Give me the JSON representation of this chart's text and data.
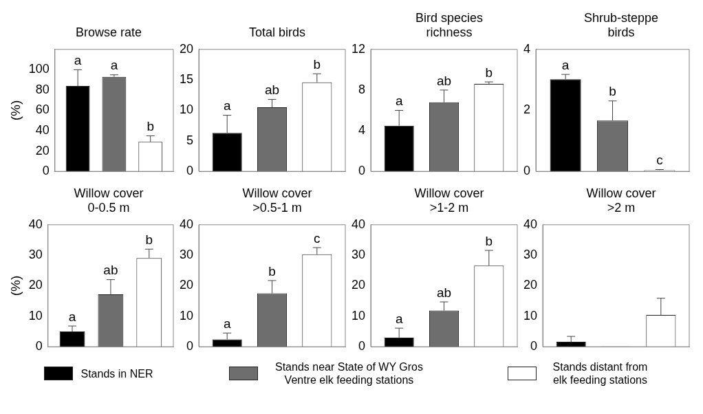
{
  "chart_data": [
    {
      "type": "bar",
      "title": "Browse rate",
      "ylabel": "(%)",
      "categories": [
        null
      ],
      "ylim": [
        0,
        120
      ],
      "yticks": [
        0,
        20,
        40,
        60,
        80,
        100
      ],
      "legend": "bottom",
      "series": [
        {
          "name": "Stands in NER",
          "color": "#000000",
          "values": [
            84
          ],
          "errors": [
            16
          ],
          "value_labels": [
            "a"
          ]
        },
        {
          "name": "Stands near State of WY Gros Ventre elk feeding stations",
          "color": "#6e6e6e",
          "values": [
            93
          ],
          "errors": [
            2
          ],
          "value_labels": [
            "a"
          ]
        },
        {
          "name": "Stands distant from elk feeding stations",
          "color": "#ffffff",
          "values": [
            29
          ],
          "errors": [
            6
          ],
          "value_labels": [
            "b"
          ]
        }
      ]
    },
    {
      "type": "bar",
      "title": "Total birds",
      "categories": [
        null
      ],
      "ylim": [
        0,
        20
      ],
      "yticks": [
        0,
        5,
        10,
        15,
        20
      ],
      "series": [
        {
          "color": "#000000",
          "values": [
            6.3
          ],
          "errors": [
            2.9
          ],
          "value_labels": [
            "a"
          ]
        },
        {
          "color": "#6e6e6e",
          "values": [
            10.5
          ],
          "errors": [
            1.3
          ],
          "value_labels": [
            "ab"
          ]
        },
        {
          "color": "#ffffff",
          "values": [
            14.6
          ],
          "errors": [
            1.4
          ],
          "value_labels": [
            "b"
          ]
        }
      ]
    },
    {
      "type": "bar",
      "title": "Bird species richness",
      "categories": [
        null
      ],
      "ylim": [
        0,
        12
      ],
      "yticks": [
        0,
        4,
        8,
        12
      ],
      "series": [
        {
          "color": "#000000",
          "values": [
            4.5
          ],
          "errors": [
            1.5
          ],
          "value_labels": [
            "a"
          ]
        },
        {
          "color": "#6e6e6e",
          "values": [
            6.8
          ],
          "errors": [
            1.2
          ],
          "value_labels": [
            "ab"
          ]
        },
        {
          "color": "#ffffff",
          "values": [
            8.6
          ],
          "errors": [
            0.2
          ],
          "value_labels": [
            "b"
          ]
        }
      ]
    },
    {
      "type": "bar",
      "title": "Shrub-steppe birds",
      "categories": [
        null
      ],
      "ylim": [
        0,
        4
      ],
      "yticks": [
        0,
        2,
        4
      ],
      "series": [
        {
          "color": "#000000",
          "values": [
            3.02
          ],
          "errors": [
            0.16
          ],
          "value_labels": [
            "a"
          ]
        },
        {
          "color": "#6e6e6e",
          "values": [
            1.67
          ],
          "errors": [
            0.64
          ],
          "value_labels": [
            "b"
          ]
        },
        {
          "color": "#ffffff",
          "values": [
            0.04
          ],
          "errors": [
            0.02
          ],
          "value_labels": [
            "c"
          ]
        }
      ]
    },
    {
      "type": "bar",
      "title": "Willow cover 0-0.5 m",
      "ylabel": "(%)",
      "categories": [
        null
      ],
      "ylim": [
        0,
        40
      ],
      "yticks": [
        0,
        10,
        20,
        30,
        40
      ],
      "series": [
        {
          "color": "#000000",
          "values": [
            5.0
          ],
          "errors": [
            1.8
          ],
          "value_labels": [
            "a"
          ]
        },
        {
          "color": "#6e6e6e",
          "values": [
            17.2
          ],
          "errors": [
            4.8
          ],
          "value_labels": [
            "ab"
          ]
        },
        {
          "color": "#ffffff",
          "values": [
            29.1
          ],
          "errors": [
            2.9
          ],
          "value_labels": [
            "b"
          ]
        }
      ]
    },
    {
      "type": "bar",
      "title": "Willow cover >0.5-1 m",
      "categories": [
        null
      ],
      "ylim": [
        0,
        40
      ],
      "yticks": [
        0,
        10,
        20,
        30,
        40
      ],
      "series": [
        {
          "color": "#000000",
          "values": [
            2.4
          ],
          "errors": [
            2.1
          ],
          "value_labels": [
            "a"
          ]
        },
        {
          "color": "#6e6e6e",
          "values": [
            17.5
          ],
          "errors": [
            4.2
          ],
          "value_labels": [
            "b"
          ]
        },
        {
          "color": "#ffffff",
          "values": [
            30.3
          ],
          "errors": [
            2.2
          ],
          "value_labels": [
            "c"
          ]
        }
      ]
    },
    {
      "type": "bar",
      "title": "Willow cover >1-2 m",
      "categories": [
        null
      ],
      "ylim": [
        0,
        40
      ],
      "yticks": [
        0,
        10,
        20,
        30,
        40
      ],
      "series": [
        {
          "color": "#000000",
          "values": [
            3.0
          ],
          "errors": [
            3.1
          ],
          "value_labels": [
            "a"
          ]
        },
        {
          "color": "#6e6e6e",
          "values": [
            11.9
          ],
          "errors": [
            2.8
          ],
          "value_labels": [
            "ab"
          ]
        },
        {
          "color": "#ffffff",
          "values": [
            26.6
          ],
          "errors": [
            5.0
          ],
          "value_labels": [
            "b"
          ]
        }
      ]
    },
    {
      "type": "bar",
      "title": "Willow cover >2 m",
      "categories": [
        null
      ],
      "ylim": [
        0,
        40
      ],
      "yticks": [
        0,
        10,
        20,
        30,
        40
      ],
      "series": [
        {
          "color": "#000000",
          "values": [
            1.6
          ],
          "errors": [
            1.8
          ]
        },
        {
          "color": "#6e6e6e",
          "values": [
            0.1
          ]
        },
        {
          "color": "#ffffff",
          "values": [
            10.4
          ],
          "errors": [
            5.5
          ]
        }
      ]
    }
  ]
}
